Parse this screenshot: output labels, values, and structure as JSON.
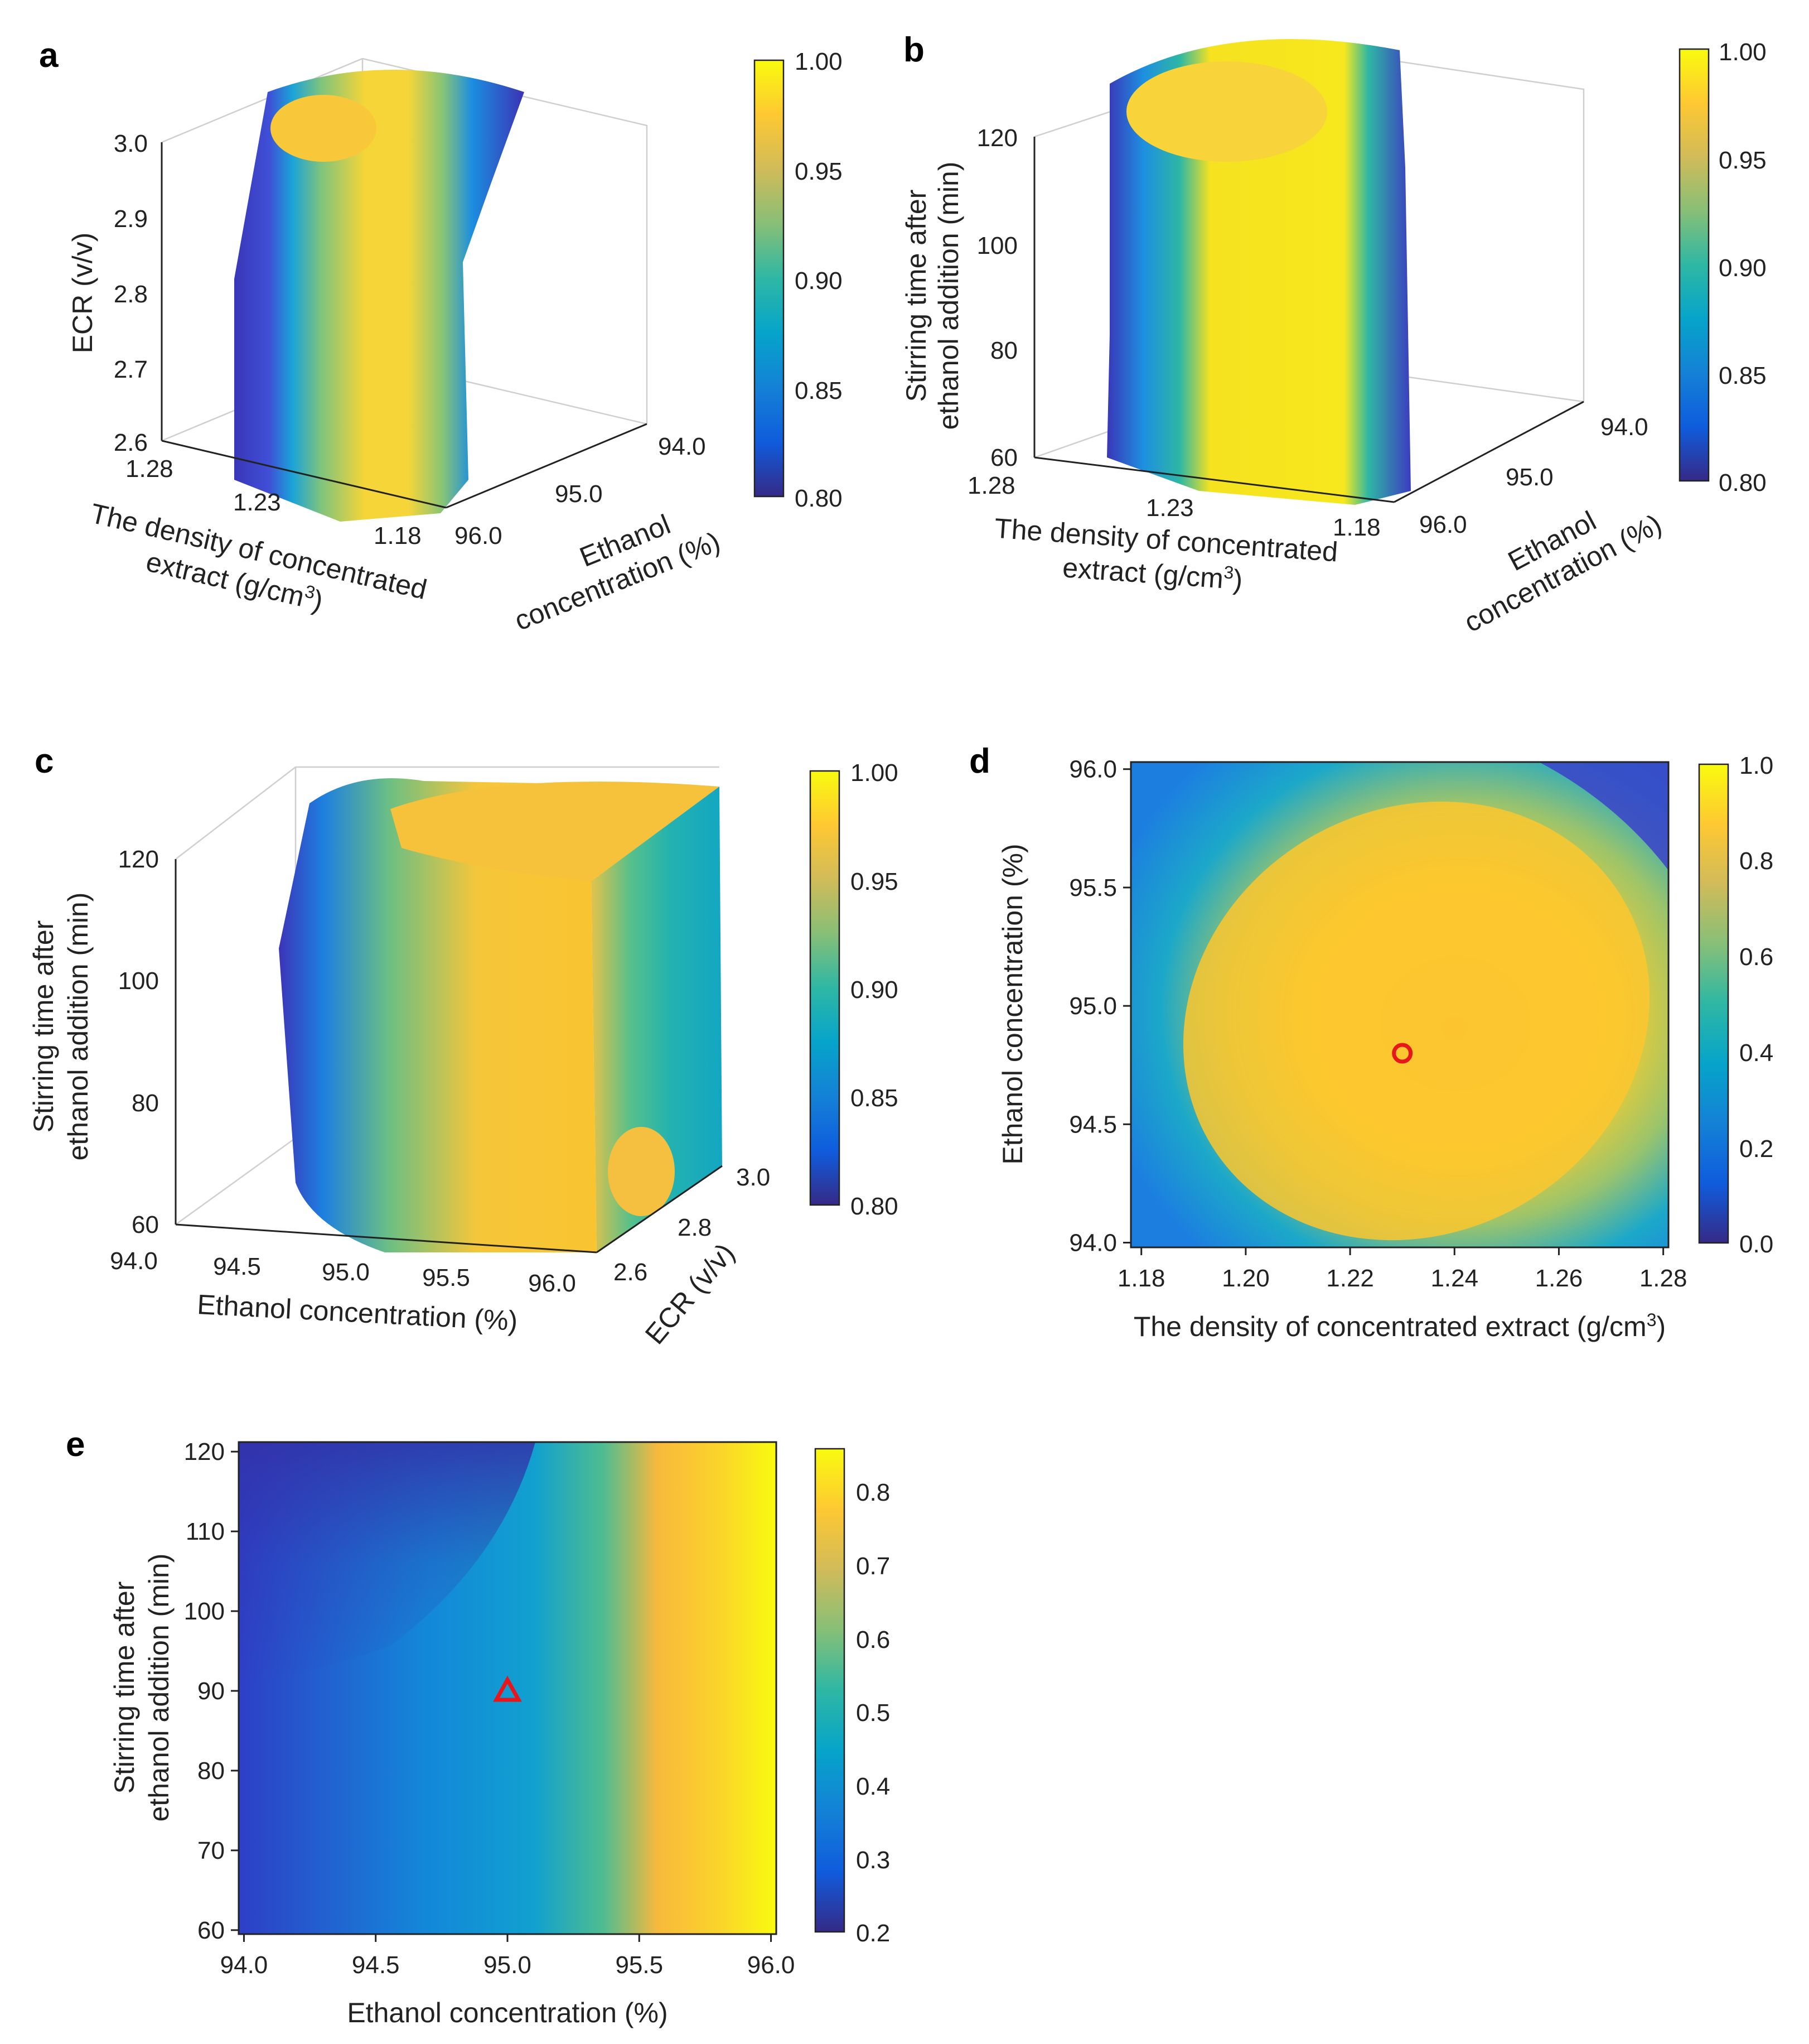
{
  "colors": {
    "parula": [
      "#352a87",
      "#0f5cdd",
      "#1481d6",
      "#06a4ca",
      "#2eb7a4",
      "#87bf77",
      "#d1bb59",
      "#fec832",
      "#f9fb0e"
    ],
    "marker": "#e8161b"
  },
  "chart_data": [
    {
      "panel": "a",
      "type": "3d-volume",
      "xlabel_line1": "The density  of concentrated",
      "xlabel_line2": "extract (g/cm",
      "xlabel_sup": "3",
      "xlabel_end": ")",
      "x_ticks": [
        "1.28",
        "1.23",
        "1.18"
      ],
      "ylabel_line1": "Ethanol",
      "ylabel_line2": "concentration (%)",
      "y_ticks": [
        "96.0",
        "95.0",
        "94.0"
      ],
      "zlabel": "ECR (v/v)",
      "z_ticks": [
        "3.0",
        "2.9",
        "2.8",
        "2.7",
        "2.6"
      ],
      "colorbar_ticks": [
        "1.00",
        "0.95",
        "0.90",
        "0.85",
        "0.80"
      ],
      "clim": [
        0.8,
        1.0
      ]
    },
    {
      "panel": "b",
      "type": "3d-volume",
      "xlabel_line1": "The density  of concentrated",
      "xlabel_line2": "extract (g/cm",
      "xlabel_sup": "3",
      "xlabel_end": ")",
      "x_ticks": [
        "1.28",
        "1.23",
        "1.18"
      ],
      "ylabel_line1": "Ethanol",
      "ylabel_line2": "concentration (%)",
      "y_ticks": [
        "96.0",
        "95.0",
        "94.0"
      ],
      "zlabel_line1": "Stirring time after",
      "zlabel_line2": "ethanol addition (min)",
      "z_ticks": [
        "120",
        "100",
        "80",
        "60"
      ],
      "colorbar_ticks": [
        "1.00",
        "0.95",
        "0.90",
        "0.85",
        "0.80"
      ],
      "clim": [
        0.8,
        1.0
      ]
    },
    {
      "panel": "c",
      "type": "3d-volume",
      "xlabel": "Ethanol concentration (%)",
      "x_ticks": [
        "94.0",
        "94.5",
        "95.0",
        "95.5",
        "96.0"
      ],
      "ylabel": "ECR (v/v)",
      "y_ticks": [
        "2.6",
        "2.8",
        "3.0"
      ],
      "zlabel_line1": "Stirring time after",
      "zlabel_line2": "ethanol addition (min)",
      "z_ticks": [
        "120",
        "100",
        "80",
        "60"
      ],
      "colorbar_ticks": [
        "1.00",
        "0.95",
        "0.90",
        "0.85",
        "0.80"
      ],
      "clim": [
        0.8,
        1.0
      ]
    },
    {
      "panel": "d",
      "type": "heatmap",
      "xlabel": "The density of concentrated extract (g/cm",
      "xlabel_sup": "3",
      "xlabel_end": ")",
      "x_ticks": [
        "1.18",
        "1.20",
        "1.22",
        "1.24",
        "1.26",
        "1.28"
      ],
      "xlim": [
        1.178,
        1.281
      ],
      "ylabel": "Ethanol concentration (%)",
      "y_ticks": [
        "96.0",
        "95.5",
        "95.0",
        "94.5",
        "94.0"
      ],
      "ylim": [
        93.98,
        96.03
      ],
      "colorbar_ticks": [
        "1.0",
        "0.8",
        "0.6",
        "0.4",
        "0.2",
        "0.0"
      ],
      "clim": [
        0.0,
        1.0
      ],
      "marker": {
        "shape": "circle",
        "x": 1.23,
        "y": 94.8
      }
    },
    {
      "panel": "e",
      "type": "heatmap",
      "xlabel": "Ethanol concentration (%)",
      "x_ticks": [
        "94.0",
        "94.5",
        "95.0",
        "95.5",
        "96.0"
      ],
      "xlim": [
        93.98,
        96.02
      ],
      "ylabel_line1": "Stirring time after",
      "ylabel_line2": "ethanol addition (min)",
      "y_ticks": [
        "120",
        "110",
        "100",
        "90",
        "80",
        "70",
        "60"
      ],
      "ylim": [
        59.5,
        121.2
      ],
      "colorbar_ticks": [
        "0.8",
        "0.7",
        "0.6",
        "0.5",
        "0.4",
        "0.3",
        "0.2"
      ],
      "clim": [
        0.2,
        0.86
      ],
      "marker": {
        "shape": "triangle",
        "x": 95.0,
        "y": 90
      }
    }
  ]
}
